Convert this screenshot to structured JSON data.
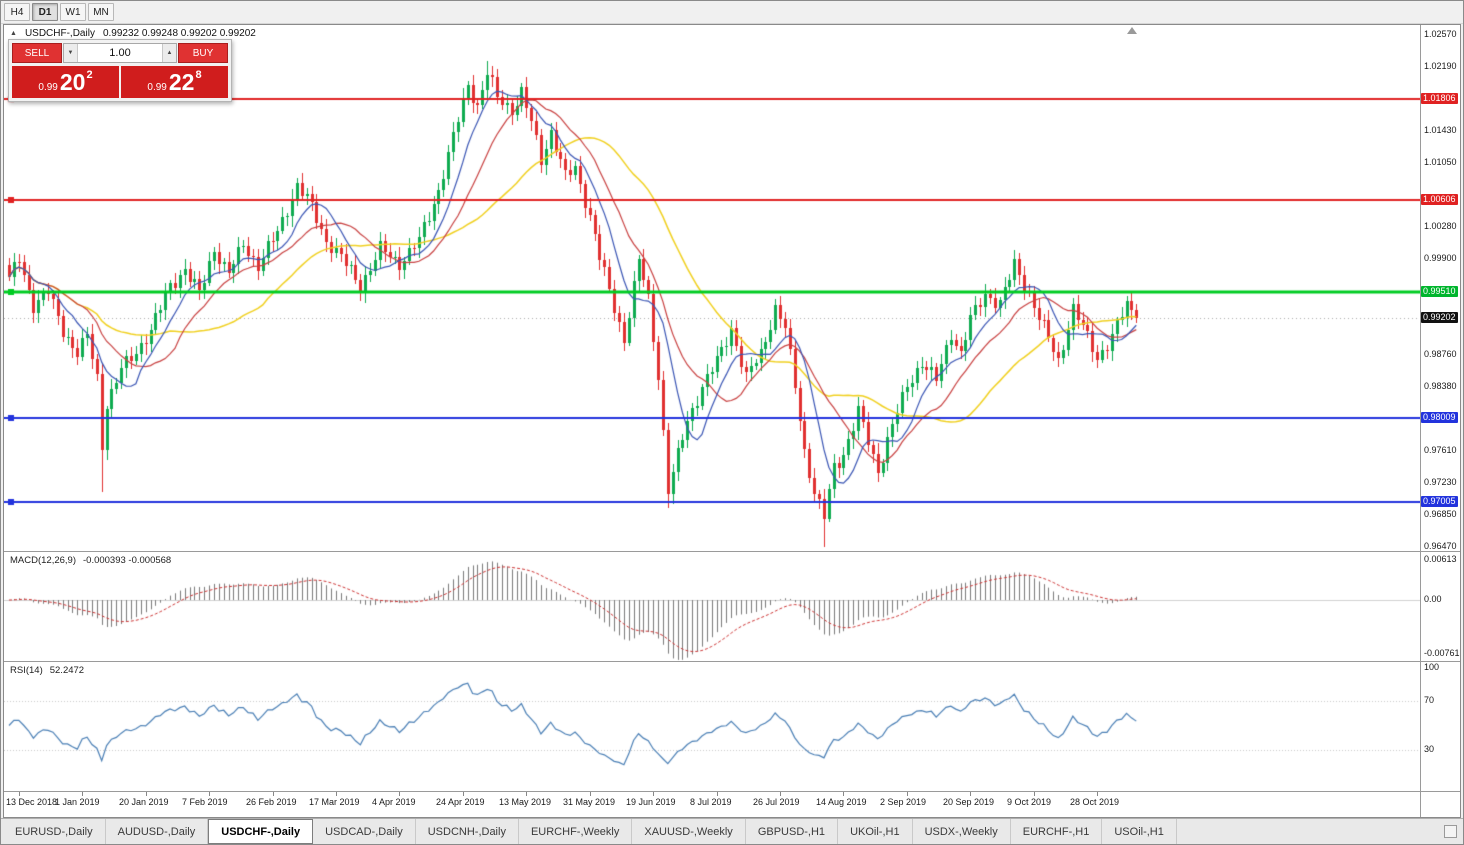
{
  "toolbar": {
    "timeframes": [
      {
        "label": "H4",
        "active": false
      },
      {
        "label": "D1",
        "active": true
      },
      {
        "label": "W1",
        "active": false
      },
      {
        "label": "MN",
        "active": false
      }
    ]
  },
  "chart_header": {
    "collapse_icon": "▲",
    "title": "USDCHF-,Daily",
    "ohlc": "0.99232 0.99248 0.99202 0.99202"
  },
  "trade_panel": {
    "sell_label": "SELL",
    "buy_label": "BUY",
    "volume": "1.00",
    "vol_dec_icon": "▼",
    "vol_inc_icon": "▲",
    "sell_price": {
      "small": "0.99",
      "big": "20",
      "sup": "2"
    },
    "buy_price": {
      "small": "0.99",
      "big": "22",
      "sup": "8"
    }
  },
  "indicators": {
    "macd": {
      "label": "MACD(12,26,9)",
      "values": "-0.000393 -0.000568",
      "scale": [
        "0.00613",
        "0.00",
        "-0.00761"
      ]
    },
    "rsi": {
      "label": "RSI(14)",
      "value": "52.2472",
      "scale": [
        "100",
        "70",
        "30"
      ]
    }
  },
  "price_scale": {
    "items": [
      {
        "label": "1.02570",
        "value": 1.0257,
        "type": "tick"
      },
      {
        "label": "1.02190",
        "value": 1.0219,
        "type": "tick"
      },
      {
        "label": "1.01806",
        "value": 1.01806,
        "type": "red"
      },
      {
        "label": "1.01430",
        "value": 1.0143,
        "type": "tick"
      },
      {
        "label": "1.01050",
        "value": 1.0105,
        "type": "tick"
      },
      {
        "label": "1.00606",
        "value": 1.00606,
        "type": "red"
      },
      {
        "label": "1.00280",
        "value": 1.0028,
        "type": "tick"
      },
      {
        "label": "0.99900",
        "value": 0.999,
        "type": "tick"
      },
      {
        "label": "0.99510",
        "value": 0.9951,
        "type": "green"
      },
      {
        "label": "0.99202",
        "value": 0.99202,
        "type": "black"
      },
      {
        "label": "0.98760",
        "value": 0.9876,
        "type": "tick"
      },
      {
        "label": "0.98380",
        "value": 0.9838,
        "type": "tick"
      },
      {
        "label": "0.98009",
        "value": 0.98009,
        "type": "blue"
      },
      {
        "label": "0.97610",
        "value": 0.9761,
        "type": "tick"
      },
      {
        "label": "0.97230",
        "value": 0.9723,
        "type": "tick"
      },
      {
        "label": "0.97005",
        "value": 0.97005,
        "type": "blue"
      },
      {
        "label": "0.96850",
        "value": 0.9685,
        "type": "tick"
      },
      {
        "label": "0.96470",
        "value": 0.9647,
        "type": "tick"
      }
    ]
  },
  "hlines": [
    {
      "value": 1.01806,
      "color_key": "hline_red",
      "width": 2,
      "handle": true
    },
    {
      "value": 1.00606,
      "color_key": "hline_red",
      "width": 2,
      "handle": true
    },
    {
      "value": 0.9951,
      "color_key": "hline_green",
      "width": 3,
      "handle": true
    },
    {
      "value": 0.98009,
      "color_key": "hline_blue",
      "width": 2,
      "handle": true
    },
    {
      "value": 0.97005,
      "color_key": "hline_blue",
      "width": 2,
      "handle": true
    }
  ],
  "current_price": {
    "value": 0.99202,
    "label": "0.99202"
  },
  "date_axis": {
    "first_bar": 2,
    "step": 13,
    "labels": [
      "13 Dec 2018",
      "1 Jan 2019",
      "20 Jan 2019",
      "7 Feb 2019",
      "26 Feb 2019",
      "17 Mar 2019",
      "4 Apr 2019",
      "24 Apr 2019",
      "13 May 2019",
      "31 May 2019",
      "19 Jun 2019",
      "8 Jul 2019",
      "26 Jul 2019",
      "14 Aug 2019",
      "2 Sep 2019",
      "20 Sep 2019",
      "9 Oct 2019",
      "28 Oct 2019"
    ]
  },
  "tabs": [
    {
      "label": "EURUSD-,Daily",
      "active": false
    },
    {
      "label": "AUDUSD-,Daily",
      "active": false
    },
    {
      "label": "USDCHF-,Daily",
      "active": true
    },
    {
      "label": "USDCAD-,Daily",
      "active": false
    },
    {
      "label": "USDCNH-,Daily",
      "active": false
    },
    {
      "label": "EURCHF-,Weekly",
      "active": false
    },
    {
      "label": "XAUUSD-,Weekly",
      "active": false
    },
    {
      "label": "GBPUSD-,H1",
      "active": false
    },
    {
      "label": "UKOil-,H1",
      "active": false
    },
    {
      "label": "USDX-,Weekly",
      "active": false
    },
    {
      "label": "EURCHF-,H1",
      "active": false
    },
    {
      "label": "USOil-,H1",
      "active": false
    }
  ],
  "colors": {
    "up": "#0fab50",
    "down": "#e13030",
    "ma_fast": "#3a55b4",
    "ma_mid": "#c84040",
    "ma_slow": "#f0d020",
    "hline_red": "#e02222",
    "hline_green": "#00cc22",
    "hline_blue": "#2233dd",
    "current_line": "#aaaaaa",
    "macd_hist": "#7a7a7a",
    "macd_signal": "#cc3333",
    "rsi_line": "#4a7fb5"
  },
  "chart_data": {
    "type": "candlestick",
    "symbol": "USDCHF-",
    "timeframe": "Daily",
    "ohlc_display": {
      "open": "0.99232",
      "high": "0.99248",
      "low": "0.99202",
      "close": "0.99202"
    },
    "bars": 232,
    "price_max": 1.0257,
    "price_min": 0.9647,
    "last_close": 0.99202,
    "noise": [
      0.0006,
      0.0004
    ],
    "price_anchors": [
      [
        0,
        0.9965
      ],
      [
        2,
        0.999
      ],
      [
        5,
        0.9935
      ],
      [
        8,
        0.995
      ],
      [
        11,
        0.9905
      ],
      [
        14,
        0.9878
      ],
      [
        16,
        0.9898
      ],
      [
        18,
        0.9848
      ],
      [
        19,
        0.9768
      ],
      [
        20,
        0.9818
      ],
      [
        23,
        0.9858
      ],
      [
        26,
        0.988
      ],
      [
        29,
        0.9905
      ],
      [
        33,
        0.9958
      ],
      [
        36,
        0.9978
      ],
      [
        39,
        0.9948
      ],
      [
        42,
        1.0002
      ],
      [
        45,
        0.9972
      ],
      [
        48,
        1.0008
      ],
      [
        51,
        0.9982
      ],
      [
        55,
        1.0022
      ],
      [
        59,
        1.0078
      ],
      [
        62,
        1.0052
      ],
      [
        65,
        1.0012
      ],
      [
        68,
        0.9992
      ],
      [
        72,
        0.9958
      ],
      [
        76,
        1.0002
      ],
      [
        80,
        0.9985
      ],
      [
        84,
        1.0012
      ],
      [
        88,
        1.0072
      ],
      [
        91,
        1.0135
      ],
      [
        94,
        1.0198
      ],
      [
        96,
        1.0172
      ],
      [
        98,
        1.0212
      ],
      [
        100,
        1.0182
      ],
      [
        103,
        1.0168
      ],
      [
        105,
        1.0188
      ],
      [
        107,
        1.0152
      ],
      [
        109,
        1.0108
      ],
      [
        111,
        1.0142
      ],
      [
        114,
        1.0088
      ],
      [
        116,
        1.0098
      ],
      [
        119,
        1.0042
      ],
      [
        121,
        0.9992
      ],
      [
        124,
        0.9932
      ],
      [
        126,
        0.9895
      ],
      [
        129,
        0.9988
      ],
      [
        131,
        0.9942
      ],
      [
        133,
        0.9852
      ],
      [
        135,
        0.9715
      ],
      [
        137,
        0.9755
      ],
      [
        139,
        0.9798
      ],
      [
        142,
        0.9838
      ],
      [
        145,
        0.9868
      ],
      [
        148,
        0.9908
      ],
      [
        151,
        0.9848
      ],
      [
        154,
        0.9878
      ],
      [
        157,
        0.9932
      ],
      [
        159,
        0.9908
      ],
      [
        161,
        0.9838
      ],
      [
        163,
        0.9762
      ],
      [
        165,
        0.9712
      ],
      [
        167,
        0.9682
      ],
      [
        169,
        0.9742
      ],
      [
        171,
        0.9758
      ],
      [
        174,
        0.9808
      ],
      [
        176,
        0.9772
      ],
      [
        178,
        0.9738
      ],
      [
        181,
        0.9792
      ],
      [
        184,
        0.9838
      ],
      [
        187,
        0.9868
      ],
      [
        190,
        0.9845
      ],
      [
        193,
        0.9902
      ],
      [
        195,
        0.9878
      ],
      [
        197,
        0.9918
      ],
      [
        200,
        0.9948
      ],
      [
        203,
        0.9938
      ],
      [
        206,
        0.9982
      ],
      [
        209,
        0.9948
      ],
      [
        212,
        0.9908
      ],
      [
        215,
        0.9868
      ],
      [
        218,
        0.9932
      ],
      [
        220,
        0.9908
      ],
      [
        223,
        0.9872
      ],
      [
        226,
        0.9898
      ],
      [
        229,
        0.9935
      ],
      [
        231,
        0.99202
      ]
    ],
    "spike_lows": [
      [
        19,
        0.9712
      ],
      [
        135,
        0.9693
      ],
      [
        167,
        0.9647
      ]
    ],
    "spike_highs": [
      [
        98,
        1.0226
      ]
    ],
    "ma_periods": {
      "fast": 8,
      "mid": 16,
      "slow": 34
    },
    "macd_range": [
      -0.00761,
      0.00613
    ],
    "rsi_period": 14
  }
}
